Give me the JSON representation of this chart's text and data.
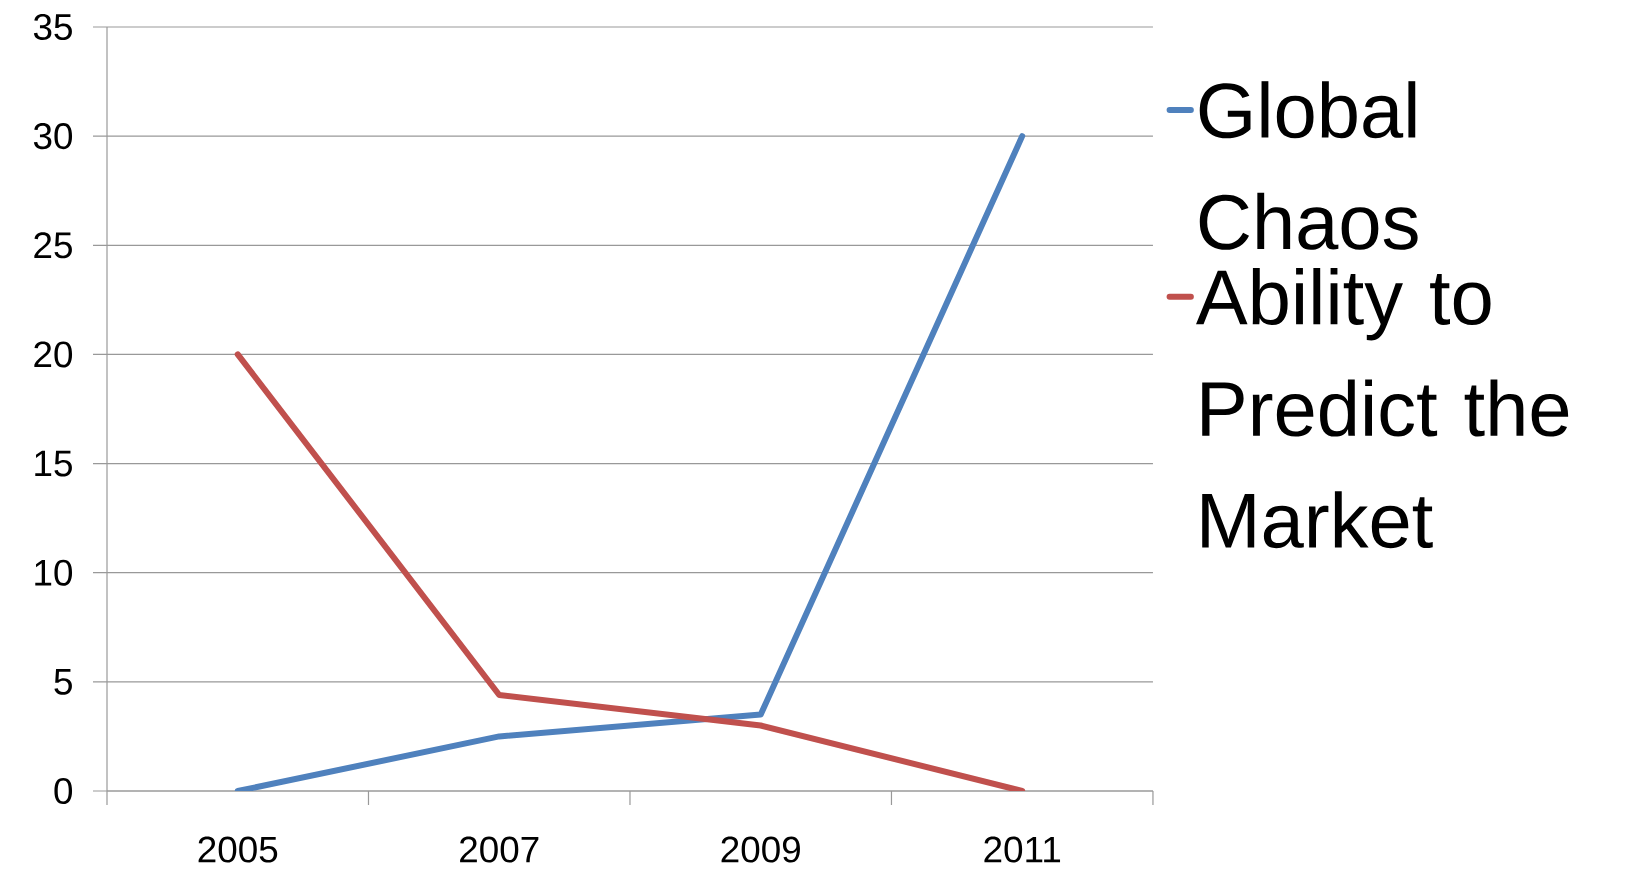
{
  "chart_data": {
    "type": "line",
    "categories": [
      "2005",
      "2007",
      "2009",
      "2011"
    ],
    "series": [
      {
        "name": "Global Chaos",
        "color": "#4f81bd",
        "values": [
          0,
          2.5,
          3.5,
          30
        ]
      },
      {
        "name": "Ability to Predict the Market",
        "color": "#c0504d",
        "values": [
          20,
          4.4,
          3,
          0
        ]
      }
    ],
    "ylim": [
      0,
      35
    ],
    "yticks": [
      0,
      5,
      10,
      15,
      20,
      25,
      30,
      35
    ],
    "grid": "y",
    "legend": "right",
    "marker": "none",
    "line_style": "solid"
  }
}
